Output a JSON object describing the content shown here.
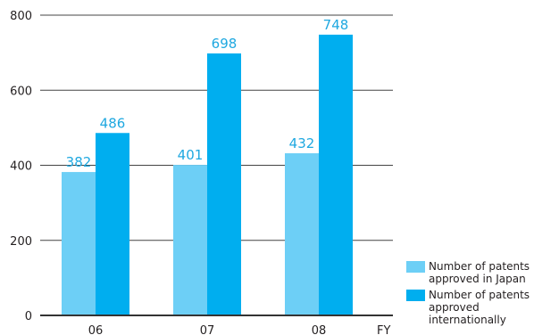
{
  "chart_data": {
    "type": "bar",
    "categories": [
      "06",
      "07",
      "08"
    ],
    "x_unit_label": "FY",
    "series": [
      {
        "name": "Number of patents\napproved in Japan",
        "values": [
          382,
          401,
          432
        ],
        "color": "#6dcff6"
      },
      {
        "name": "Number of patents\napproved internationally",
        "values": [
          486,
          698,
          748
        ],
        "color": "#00aeef"
      }
    ],
    "ylim": [
      0,
      800
    ],
    "yticks": [
      0,
      200,
      400,
      600,
      800
    ],
    "grid": true,
    "legend_position": "bottom-right"
  }
}
